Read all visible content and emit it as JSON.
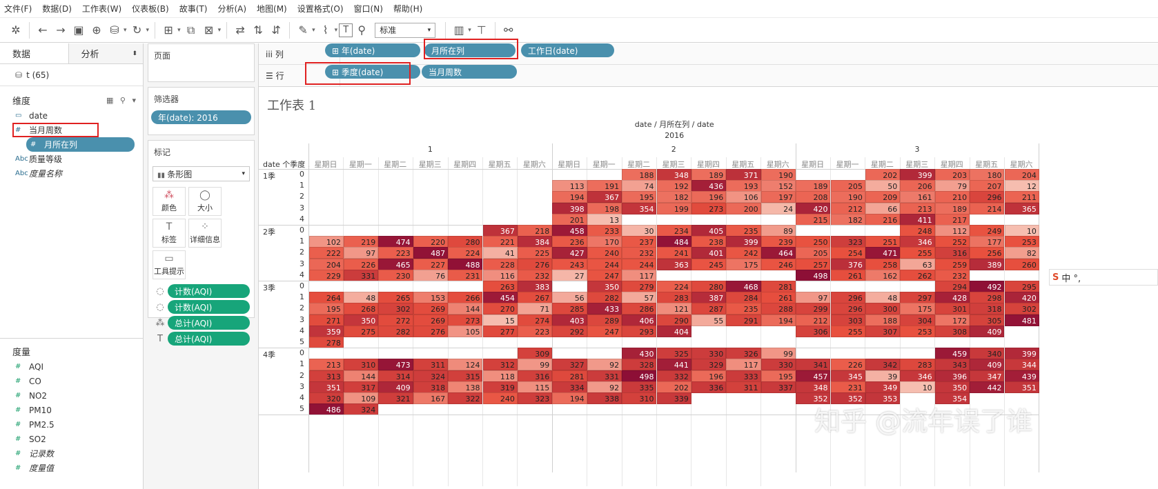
{
  "menu": [
    "文件(F)",
    "数据(D)",
    "工作表(W)",
    "仪表板(B)",
    "故事(T)",
    "分析(A)",
    "地图(M)",
    "设置格式(O)",
    "窗口(N)",
    "帮助(H)"
  ],
  "toolbar": {
    "format_select": "标准"
  },
  "left_panel": {
    "tab_data": "数据",
    "tab_analysis": "分析",
    "datasource": "t (65)",
    "dimensions_title": "维度",
    "dimensions": [
      {
        "icon": "calendar-icon",
        "label": "date"
      },
      {
        "icon": "number-icon",
        "label": "当月周数"
      },
      {
        "icon": "number-icon",
        "label": "月所在列"
      },
      {
        "icon": "abc-icon",
        "label": "质量等级"
      },
      {
        "icon": "abc-icon",
        "label": "度量名称"
      }
    ],
    "measures_title": "度量",
    "measures": [
      "AQI",
      "CO",
      "NO2",
      "PM10",
      "PM2.5",
      "SO2",
      "记录数",
      "度量值"
    ]
  },
  "mid_panel": {
    "pages_title": "页面",
    "filters_title": "筛选器",
    "filter_pill": "年(date): 2016",
    "marks_title": "标记",
    "mark_type": "条形图",
    "mark_buttons": [
      "颜色",
      "大小",
      "标签",
      "详细信息",
      "工具提示"
    ],
    "encodings": [
      {
        "icon": "size-icon",
        "label": "计数(AQI)"
      },
      {
        "icon": "size-icon",
        "label": "计数(AQI)"
      },
      {
        "icon": "color-icon",
        "label": "总计(AQI)"
      },
      {
        "icon": "label-icon",
        "label": "总计(AQI)"
      }
    ]
  },
  "shelves": {
    "columns_label": "iii 列",
    "rows_label": "☰ 行",
    "columns": [
      "⊞ 年(date)",
      "月所在列",
      "工作日(date)"
    ],
    "rows": [
      "⊞ 季度(date)",
      "当月周数"
    ]
  },
  "sheet": {
    "title": "工作表 1",
    "header_path": "date / 月所在列 / date",
    "year": "2016",
    "col_groups": [
      "1",
      "2",
      "3"
    ],
    "days": [
      "星期日",
      "星期一",
      "星期二",
      "星期三",
      "星期四",
      "星期五",
      "星期六"
    ],
    "row_header": "date 个季度 .",
    "quarters": [
      {
        "label": "1季",
        "rows": [
          {
            "w": "0",
            "vals": [
              null,
              null,
              null,
              null,
              null,
              null,
              null,
              null,
              null,
              188,
              348,
              189,
              371,
              190,
              null,
              null,
              202,
              399,
              203,
              180,
              204
            ]
          },
          {
            "w": "1",
            "vals": [
              null,
              null,
              null,
              null,
              null,
              null,
              null,
              113,
              191,
              74,
              192,
              436,
              193,
              152,
              189,
              205,
              50,
              206,
              79,
              207,
              12
            ]
          },
          {
            "w": "2",
            "vals": [
              null,
              null,
              null,
              null,
              null,
              null,
              null,
              194,
              367,
              195,
              182,
              196,
              106,
              197,
              208,
              190,
              209,
              161,
              210,
              296,
              211
            ]
          },
          {
            "w": "3",
            "vals": [
              null,
              null,
              null,
              null,
              null,
              null,
              null,
              398,
              198,
              354,
              199,
              273,
              200,
              24,
              420,
              212,
              66,
              213,
              189,
              214,
              365
            ]
          },
          {
            "w": "4",
            "vals": [
              null,
              null,
              null,
              null,
              null,
              null,
              null,
              201,
              13,
              null,
              null,
              null,
              null,
              null,
              215,
              182,
              216,
              411,
              217,
              null,
              null
            ]
          }
        ]
      },
      {
        "label": "2季",
        "rows": [
          {
            "w": "0",
            "vals": [
              null,
              null,
              null,
              null,
              null,
              367,
              218,
              458,
              233,
              30,
              234,
              405,
              235,
              89,
              null,
              null,
              null,
              248,
              112,
              249,
              10
            ]
          },
          {
            "w": "1",
            "vals": [
              102,
              219,
              474,
              220,
              280,
              221,
              384,
              236,
              170,
              237,
              484,
              238,
              399,
              239,
              250,
              323,
              251,
              346,
              252,
              177,
              253
            ]
          },
          {
            "w": "2",
            "vals": [
              222,
              97,
              223,
              487,
              224,
              41,
              225,
              427,
              240,
              232,
              241,
              401,
              242,
              464,
              205,
              254,
              471,
              255,
              316,
              256,
              82
            ]
          },
          {
            "w": "3",
            "vals": [
              204,
              226,
              465,
              227,
              488,
              228,
              276,
              243,
              244,
              244,
              363,
              245,
              175,
              246,
              257,
              376,
              258,
              63,
              259,
              389,
              260
            ]
          },
          {
            "w": "4",
            "vals": [
              229,
              331,
              230,
              76,
              231,
              116,
              232,
              27,
              247,
              117,
              null,
              null,
              null,
              null,
              498,
              261,
              162,
              262,
              232,
              null,
              null
            ]
          }
        ]
      },
      {
        "label": "3季",
        "rows": [
          {
            "w": "0",
            "vals": [
              null,
              null,
              null,
              null,
              null,
              263,
              383,
              null,
              350,
              279,
              224,
              280,
              468,
              281,
              null,
              null,
              null,
              null,
              294,
              492,
              295
            ]
          },
          {
            "w": "1",
            "vals": [
              264,
              48,
              265,
              153,
              266,
              454,
              267,
              56,
              282,
              57,
              283,
              387,
              284,
              261,
              97,
              296,
              48,
              297,
              428,
              298,
              420
            ]
          },
          {
            "w": "2",
            "vals": [
              195,
              268,
              302,
              269,
              144,
              270,
              71,
              285,
              433,
              286,
              121,
              287,
              235,
              288,
              299,
              296,
              300,
              175,
              301,
              318,
              302
            ]
          },
          {
            "w": "3",
            "vals": [
              271,
              350,
              272,
              269,
              273,
              15,
              274,
              403,
              289,
              406,
              290,
              55,
              291,
              194,
              212,
              303,
              188,
              304,
              172,
              305,
              481
            ]
          },
          {
            "w": "4",
            "vals": [
              359,
              275,
              282,
              276,
              105,
              277,
              223,
              292,
              247,
              293,
              404,
              null,
              null,
              null,
              306,
              255,
              307,
              253,
              308,
              409,
              null
            ]
          },
          {
            "w": "5",
            "vals": [
              278,
              null,
              null,
              null,
              null,
              null,
              null,
              null,
              null,
              null,
              null,
              null,
              null,
              null,
              null,
              null,
              null,
              null,
              null,
              null,
              null
            ]
          }
        ]
      },
      {
        "label": "4季",
        "rows": [
          {
            "w": "0",
            "vals": [
              null,
              null,
              null,
              null,
              null,
              null,
              309,
              null,
              null,
              430,
              325,
              330,
              326,
              99,
              null,
              null,
              null,
              null,
              459,
              340,
              399
            ]
          },
          {
            "w": "1",
            "vals": [
              213,
              310,
              473,
              311,
              124,
              312,
              99,
              327,
              92,
              328,
              441,
              329,
              117,
              330,
              341,
              226,
              342,
              283,
              343,
              409,
              344
            ]
          },
          {
            "w": "2",
            "vals": [
              313,
              144,
              314,
              324,
              315,
              118,
              316,
              281,
              331,
              498,
              332,
              196,
              333,
              195,
              457,
              345,
              39,
              346,
              396,
              347,
              439
            ]
          },
          {
            "w": "3",
            "vals": [
              351,
              317,
              409,
              318,
              138,
              319,
              115,
              334,
              92,
              335,
              202,
              336,
              311,
              337,
              348,
              231,
              349,
              10,
              350,
              442,
              351
            ]
          },
          {
            "w": "4",
            "vals": [
              320,
              109,
              321,
              167,
              322,
              240,
              323,
              194,
              338,
              310,
              339,
              null,
              null,
              null,
              352,
              352,
              353,
              null,
              354,
              null,
              null
            ]
          },
          {
            "w": "5",
            "vals": [
              486,
              324,
              null,
              null,
              null,
              null,
              null,
              null,
              null,
              null,
              null,
              null,
              null,
              null,
              null,
              null,
              null,
              null,
              null,
              null,
              null
            ]
          }
        ]
      }
    ]
  },
  "ime": {
    "s": "S",
    "text": "中 °,"
  },
  "watermark": "知乎 @流年误了谁"
}
